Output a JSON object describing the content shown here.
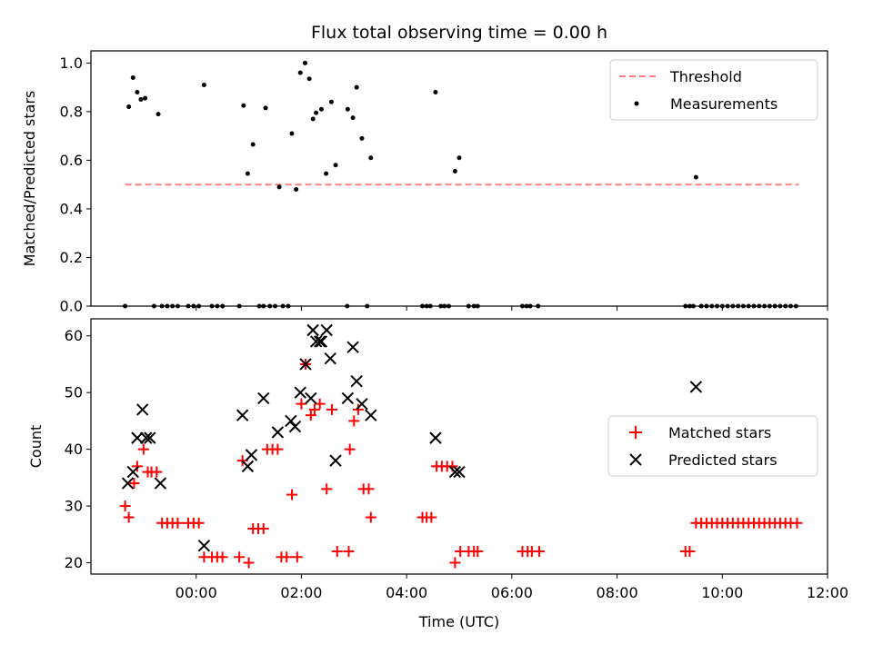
{
  "chart_data": [
    {
      "type": "scatter",
      "title": "Flux total observing time = 0.00 h",
      "ylabel": "Matched/Predicted stars",
      "xlabel": "",
      "x_unit": "hours (UTC)",
      "xlim": [
        -2.0,
        12.0
      ],
      "ylim": [
        0.0,
        1.05
      ],
      "yticks": [
        "0.0",
        "0.2",
        "0.4",
        "0.6",
        "0.8",
        "1.0"
      ],
      "ytick_values": [
        0.0,
        0.2,
        0.4,
        0.6,
        0.8,
        1.0
      ],
      "legend": {
        "placement": "upper right",
        "entries": [
          "Threshold",
          "Measurements"
        ]
      },
      "threshold": {
        "name": "Threshold",
        "value": 0.5,
        "x_start": -1.35,
        "x_end": 11.45,
        "color": "#ff7f7f",
        "style": "dashed"
      },
      "series": [
        {
          "name": "Measurements",
          "color": "#000000",
          "marker": "dot",
          "points": [
            [
              -1.35,
              0.0
            ],
            [
              -1.28,
              0.82
            ],
            [
              -1.2,
              0.94
            ],
            [
              -1.12,
              0.88
            ],
            [
              -1.05,
              0.85
            ],
            [
              -0.97,
              0.855
            ],
            [
              -0.8,
              0.0
            ],
            [
              -0.72,
              0.79
            ],
            [
              -0.65,
              0.0
            ],
            [
              -0.55,
              0.0
            ],
            [
              -0.45,
              0.0
            ],
            [
              -0.35,
              0.0
            ],
            [
              -0.15,
              0.0
            ],
            [
              -0.05,
              0.0
            ],
            [
              0.05,
              0.0
            ],
            [
              0.15,
              0.91
            ],
            [
              0.3,
              0.0
            ],
            [
              0.4,
              0.0
            ],
            [
              0.5,
              0.0
            ],
            [
              0.82,
              0.0
            ],
            [
              0.9,
              0.825
            ],
            [
              0.98,
              0.545
            ],
            [
              1.08,
              0.665
            ],
            [
              1.2,
              0.0
            ],
            [
              1.28,
              0.0
            ],
            [
              1.32,
              0.815
            ],
            [
              1.4,
              0.0
            ],
            [
              1.5,
              0.0
            ],
            [
              1.58,
              0.49
            ],
            [
              1.65,
              0.0
            ],
            [
              1.75,
              0.0
            ],
            [
              1.82,
              0.71
            ],
            [
              1.9,
              0.48
            ],
            [
              1.98,
              0.96
            ],
            [
              2.07,
              1.0
            ],
            [
              2.15,
              0.935
            ],
            [
              2.22,
              0.77
            ],
            [
              2.28,
              0.795
            ],
            [
              2.38,
              0.81
            ],
            [
              2.47,
              0.545
            ],
            [
              2.57,
              0.84
            ],
            [
              2.65,
              0.58
            ],
            [
              2.87,
              0.0
            ],
            [
              2.88,
              0.81
            ],
            [
              2.98,
              0.775
            ],
            [
              3.05,
              0.9
            ],
            [
              3.15,
              0.69
            ],
            [
              3.25,
              0.0
            ],
            [
              3.32,
              0.61
            ],
            [
              4.3,
              0.0
            ],
            [
              4.38,
              0.0
            ],
            [
              4.45,
              0.0
            ],
            [
              4.55,
              0.88
            ],
            [
              4.65,
              0.0
            ],
            [
              4.72,
              0.0
            ],
            [
              4.8,
              0.0
            ],
            [
              4.92,
              0.555
            ],
            [
              5.0,
              0.61
            ],
            [
              5.18,
              0.0
            ],
            [
              5.28,
              0.0
            ],
            [
              5.35,
              0.0
            ],
            [
              6.2,
              0.0
            ],
            [
              6.28,
              0.0
            ],
            [
              6.35,
              0.0
            ],
            [
              6.5,
              0.0
            ],
            [
              9.3,
              0.0
            ],
            [
              9.38,
              0.0
            ],
            [
              9.45,
              0.0
            ],
            [
              9.5,
              0.53
            ],
            [
              9.6,
              0.0
            ],
            [
              9.7,
              0.0
            ],
            [
              9.8,
              0.0
            ],
            [
              9.9,
              0.0
            ],
            [
              10.0,
              0.0
            ],
            [
              10.1,
              0.0
            ],
            [
              10.2,
              0.0
            ],
            [
              10.3,
              0.0
            ],
            [
              10.4,
              0.0
            ],
            [
              10.5,
              0.0
            ],
            [
              10.6,
              0.0
            ],
            [
              10.7,
              0.0
            ],
            [
              10.8,
              0.0
            ],
            [
              10.9,
              0.0
            ],
            [
              11.0,
              0.0
            ],
            [
              11.1,
              0.0
            ],
            [
              11.2,
              0.0
            ],
            [
              11.3,
              0.0
            ],
            [
              11.4,
              0.0
            ]
          ]
        }
      ]
    },
    {
      "type": "scatter",
      "title": "",
      "ylabel": "Count",
      "xlabel": "Time (UTC)",
      "x_unit": "hours (UTC)",
      "xlim": [
        -2.0,
        12.0
      ],
      "ylim": [
        18,
        63
      ],
      "yticks": [
        "20",
        "30",
        "40",
        "50",
        "60"
      ],
      "ytick_values": [
        20,
        30,
        40,
        50,
        60
      ],
      "xticks": [
        "00:00",
        "02:00",
        "04:00",
        "06:00",
        "08:00",
        "10:00",
        "12:00"
      ],
      "xtick_values": [
        0,
        2,
        4,
        6,
        8,
        10,
        12
      ],
      "legend": {
        "placement": "center right",
        "entries": [
          "Matched stars",
          "Predicted stars"
        ]
      },
      "series": [
        {
          "name": "Matched stars",
          "color": "#ff0000",
          "marker": "plus",
          "points": [
            [
              -1.35,
              30
            ],
            [
              -1.28,
              28
            ],
            [
              -1.18,
              34
            ],
            [
              -1.12,
              37
            ],
            [
              -1.0,
              40
            ],
            [
              -0.92,
              36
            ],
            [
              -0.85,
              36
            ],
            [
              -0.75,
              36
            ],
            [
              -0.65,
              27
            ],
            [
              -0.55,
              27
            ],
            [
              -0.45,
              27
            ],
            [
              -0.35,
              27
            ],
            [
              -0.15,
              27
            ],
            [
              -0.05,
              27
            ],
            [
              0.05,
              27
            ],
            [
              0.15,
              21
            ],
            [
              0.3,
              21
            ],
            [
              0.4,
              21
            ],
            [
              0.5,
              21
            ],
            [
              0.82,
              21
            ],
            [
              0.88,
              38
            ],
            [
              1.0,
              20
            ],
            [
              1.08,
              26
            ],
            [
              1.18,
              26
            ],
            [
              1.28,
              26
            ],
            [
              1.35,
              40
            ],
            [
              1.45,
              40
            ],
            [
              1.55,
              40
            ],
            [
              1.62,
              21
            ],
            [
              1.72,
              21
            ],
            [
              1.82,
              32
            ],
            [
              1.92,
              21
            ],
            [
              2.0,
              48
            ],
            [
              2.08,
              55
            ],
            [
              2.18,
              46
            ],
            [
              2.25,
              47
            ],
            [
              2.35,
              48
            ],
            [
              2.48,
              33
            ],
            [
              2.58,
              47
            ],
            [
              2.68,
              22
            ],
            [
              2.9,
              22
            ],
            [
              2.92,
              40
            ],
            [
              3.0,
              45
            ],
            [
              3.08,
              47
            ],
            [
              3.18,
              33
            ],
            [
              3.28,
              33
            ],
            [
              3.32,
              28
            ],
            [
              4.3,
              28
            ],
            [
              4.38,
              28
            ],
            [
              4.47,
              28
            ],
            [
              4.57,
              37
            ],
            [
              4.67,
              37
            ],
            [
              4.77,
              37
            ],
            [
              4.87,
              37
            ],
            [
              4.92,
              20
            ],
            [
              5.02,
              22
            ],
            [
              5.18,
              22
            ],
            [
              5.28,
              22
            ],
            [
              5.35,
              22
            ],
            [
              6.2,
              22
            ],
            [
              6.3,
              22
            ],
            [
              6.38,
              22
            ],
            [
              6.52,
              22
            ],
            [
              9.3,
              22
            ],
            [
              9.38,
              22
            ],
            [
              9.5,
              27
            ],
            [
              9.6,
              27
            ],
            [
              9.7,
              27
            ],
            [
              9.8,
              27
            ],
            [
              9.9,
              27
            ],
            [
              10.0,
              27
            ],
            [
              10.1,
              27
            ],
            [
              10.2,
              27
            ],
            [
              10.3,
              27
            ],
            [
              10.4,
              27
            ],
            [
              10.5,
              27
            ],
            [
              10.6,
              27
            ],
            [
              10.7,
              27
            ],
            [
              10.8,
              27
            ],
            [
              10.9,
              27
            ],
            [
              11.0,
              27
            ],
            [
              11.1,
              27
            ],
            [
              11.2,
              27
            ],
            [
              11.3,
              27
            ],
            [
              11.42,
              27
            ]
          ]
        },
        {
          "name": "Predicted stars",
          "color": "#000000",
          "marker": "x",
          "points": [
            [
              -1.3,
              34
            ],
            [
              -1.2,
              36
            ],
            [
              -1.12,
              42
            ],
            [
              -1.02,
              47
            ],
            [
              -0.95,
              42
            ],
            [
              -0.88,
              42
            ],
            [
              -0.68,
              34
            ],
            [
              0.15,
              23
            ],
            [
              0.88,
              46
            ],
            [
              0.98,
              37
            ],
            [
              1.05,
              39
            ],
            [
              1.28,
              49
            ],
            [
              1.55,
              43
            ],
            [
              1.8,
              45
            ],
            [
              1.88,
              44
            ],
            [
              1.98,
              50
            ],
            [
              2.08,
              55
            ],
            [
              2.18,
              49
            ],
            [
              2.22,
              61
            ],
            [
              2.28,
              59
            ],
            [
              2.35,
              59
            ],
            [
              2.38,
              59
            ],
            [
              2.48,
              61
            ],
            [
              2.55,
              56
            ],
            [
              2.65,
              38
            ],
            [
              2.88,
              49
            ],
            [
              2.98,
              58
            ],
            [
              3.05,
              52
            ],
            [
              3.15,
              48
            ],
            [
              3.32,
              46
            ],
            [
              4.55,
              42
            ],
            [
              4.92,
              36
            ],
            [
              5.0,
              36
            ],
            [
              9.5,
              51
            ]
          ]
        }
      ]
    }
  ]
}
